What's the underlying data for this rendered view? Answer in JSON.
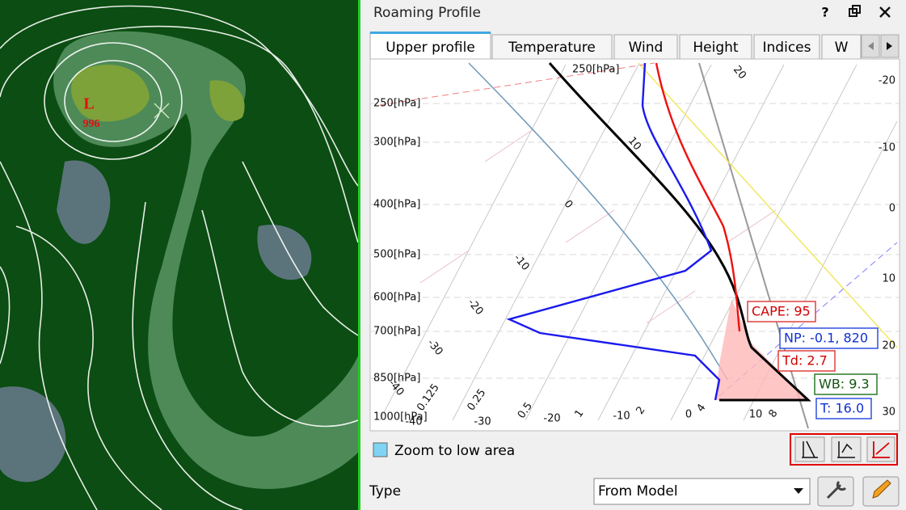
{
  "map": {
    "low_label": "L",
    "low_pressure": "996"
  },
  "panel": {
    "title": "Roaming Profile",
    "help": "?"
  },
  "tabs": [
    "Upper profile",
    "Temperature",
    "Wind",
    "Height",
    "Indices",
    "W"
  ],
  "diagram": {
    "top_pressure_label": "250[hPa]",
    "pressure_labels": [
      "250[hPa]",
      "300[hPa]",
      "400[hPa]",
      "500[hPa]",
      "600[hPa]",
      "700[hPa]",
      "850[hPa]",
      "1000[hPa]"
    ],
    "isotherm_labels": [
      "20",
      "10",
      "0",
      "-10",
      "-20",
      "-30",
      "-40"
    ],
    "mixing_ratio_labels": [
      "0.125",
      "0.25",
      "0.5",
      "1",
      "2",
      "4",
      "8"
    ],
    "temperature_axis": [
      "-40",
      "-30",
      "-20",
      "-10",
      "0",
      "10"
    ],
    "right_axis": [
      "-20",
      "-10",
      "0",
      "10",
      "20",
      "30"
    ],
    "annotations": [
      "CAPE: 95",
      "NP: -0.1, 820",
      "Td: 2.7",
      "WB: 9.3",
      "T: 16.0"
    ]
  },
  "zoom_checkbox": "Zoom to low area",
  "type_label": "Type",
  "type_value": "From Model"
}
